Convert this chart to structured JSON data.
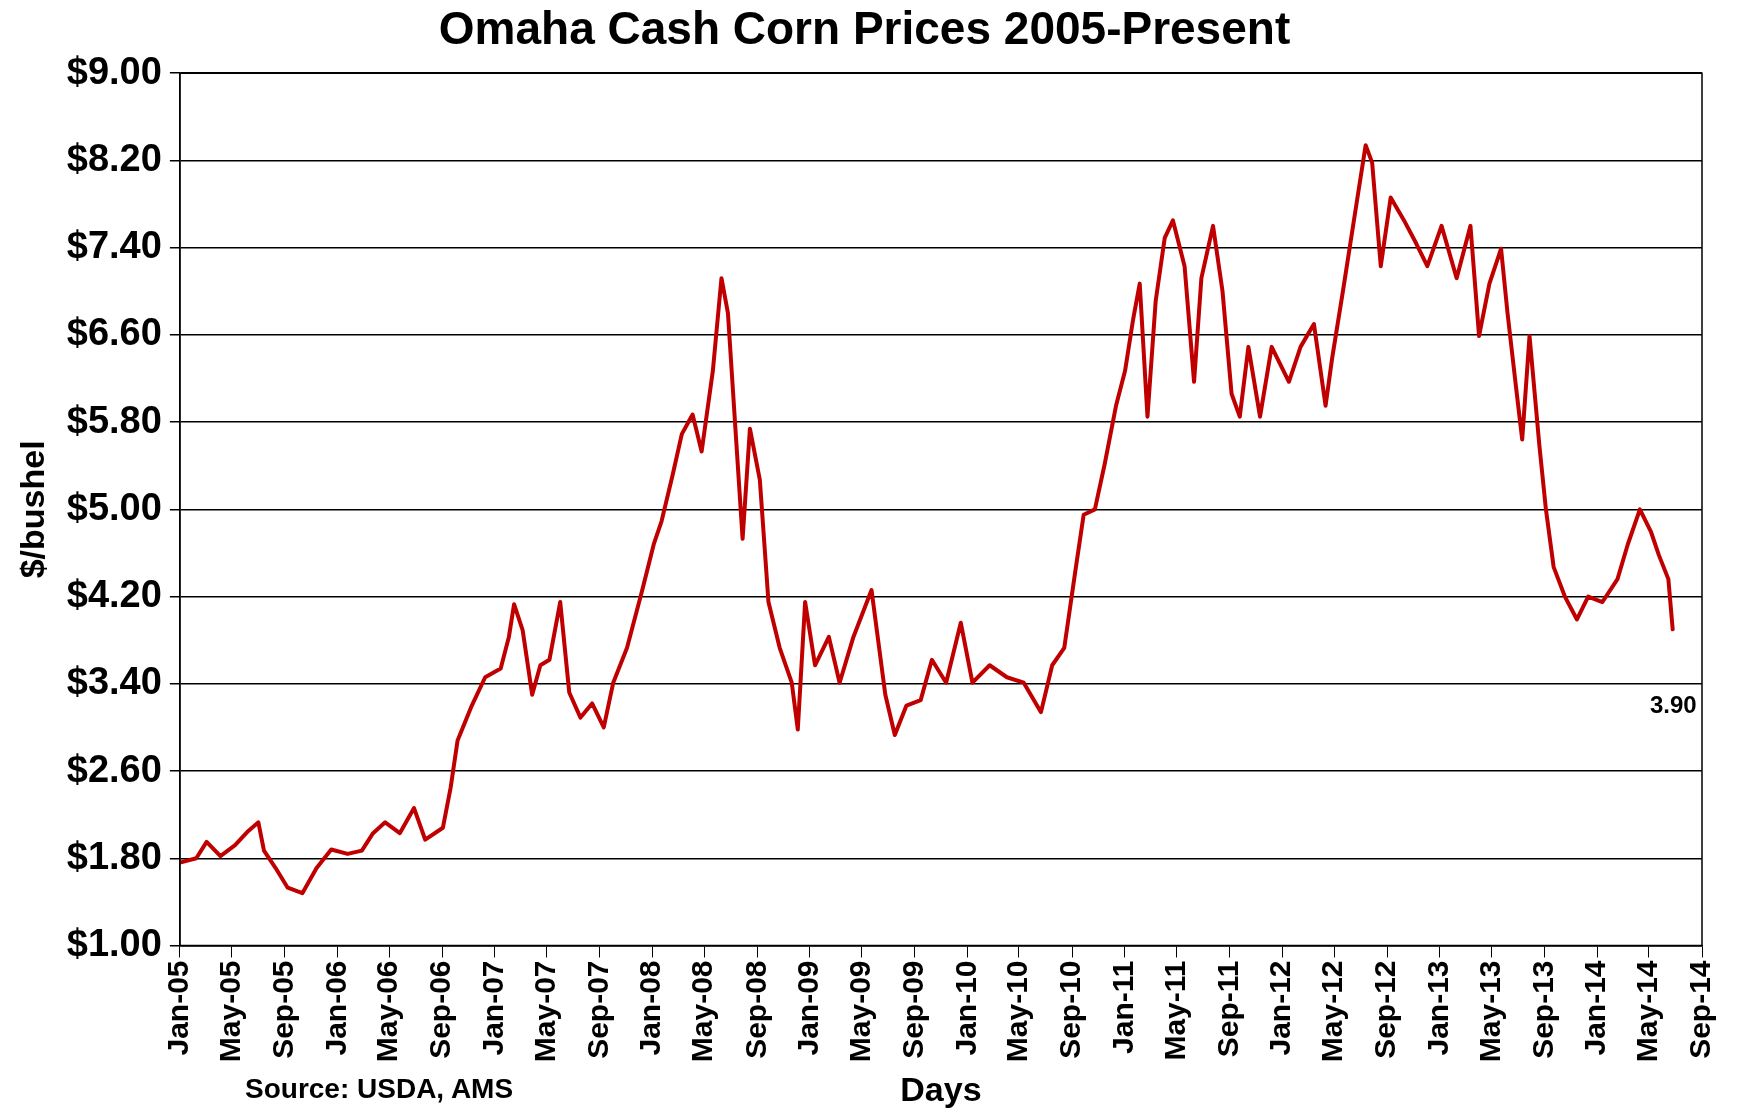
{
  "chart_data": {
    "type": "line",
    "title": "Omaha Cash Corn Prices 2005-Present",
    "xlabel": "Days",
    "ylabel": "$/bushel",
    "annotations": [
      "Source: USDA, AMS",
      {
        "text": "3.90",
        "x": "2014-06-25",
        "y": 3.9
      }
    ],
    "x": [
      "2005-01-01",
      "2005-02-08",
      "2005-03-04",
      "2005-04-05",
      "2005-05-09",
      "2005-06-06",
      "2005-07-02",
      "2005-07-15",
      "2005-08-11",
      "2005-09-08",
      "2005-10-12",
      "2005-11-14",
      "2005-12-18",
      "2006-01-25",
      "2006-02-27",
      "2006-03-25",
      "2006-04-22",
      "2006-05-26",
      "2006-06-28",
      "2006-07-24",
      "2006-09-03",
      "2006-09-21",
      "2006-10-07",
      "2006-11-09",
      "2006-12-10",
      "2007-01-15",
      "2007-02-03",
      "2007-02-15",
      "2007-03-07",
      "2007-03-29",
      "2007-04-17",
      "2007-05-08",
      "2007-06-02",
      "2007-06-23",
      "2007-07-19",
      "2007-08-15",
      "2007-09-11",
      "2007-10-03",
      "2007-11-04",
      "2007-12-08",
      "2008-01-05",
      "2008-01-23",
      "2008-02-18",
      "2008-03-10",
      "2008-04-04",
      "2008-04-25",
      "2008-05-21",
      "2008-06-10",
      "2008-06-25",
      "2008-07-14",
      "2008-07-29",
      "2008-08-15",
      "2008-09-07",
      "2008-09-27",
      "2008-10-23",
      "2008-11-20",
      "2008-12-04",
      "2008-12-21",
      "2009-01-13",
      "2009-02-14",
      "2009-03-11",
      "2009-04-12",
      "2009-05-24",
      "2009-06-25",
      "2009-07-17",
      "2009-08-13",
      "2009-09-15",
      "2009-10-11",
      "2009-11-13",
      "2009-12-17",
      "2010-01-13",
      "2010-02-22",
      "2010-04-03",
      "2010-05-12",
      "2010-06-21",
      "2010-07-17",
      "2010-08-14",
      "2010-09-10",
      "2010-09-28",
      "2010-10-24",
      "2010-11-16",
      "2010-12-12",
      "2011-01-02",
      "2011-01-21",
      "2011-02-05",
      "2011-02-23",
      "2011-03-14",
      "2011-04-04",
      "2011-04-23",
      "2011-05-20",
      "2011-06-11",
      "2011-06-28",
      "2011-07-25",
      "2011-08-16",
      "2011-09-06",
      "2011-09-25",
      "2011-10-15",
      "2011-11-11",
      "2011-12-08",
      "2012-01-17",
      "2012-02-13",
      "2012-03-15",
      "2012-04-11",
      "2012-04-26",
      "2012-05-22",
      "2012-06-24",
      "2012-07-13",
      "2012-07-28",
      "2012-08-17",
      "2012-09-09",
      "2012-10-10",
      "2012-11-07",
      "2012-12-03",
      "2013-01-05",
      "2013-02-09",
      "2013-03-13",
      "2013-04-02",
      "2013-04-26",
      "2013-05-23",
      "2013-06-07",
      "2013-06-27",
      "2013-07-11",
      "2013-07-28",
      "2013-08-20",
      "2013-09-04",
      "2013-09-22",
      "2013-10-18",
      "2013-11-15",
      "2013-12-11",
      "2014-01-13",
      "2014-02-17",
      "2014-03-13",
      "2014-04-10",
      "2014-05-06",
      "2014-05-24",
      "2014-06-15",
      "2014-06-25"
    ],
    "series": [
      {
        "color": "#c00000",
        "values": [
          1.76,
          1.8,
          1.95,
          1.82,
          1.92,
          2.04,
          2.13,
          1.87,
          1.71,
          1.53,
          1.48,
          1.71,
          1.88,
          1.84,
          1.87,
          2.03,
          2.13,
          2.03,
          2.26,
          1.97,
          2.08,
          2.45,
          2.88,
          3.2,
          3.46,
          3.54,
          3.83,
          4.13,
          3.89,
          3.3,
          3.57,
          3.62,
          4.15,
          3.32,
          3.09,
          3.22,
          3.0,
          3.41,
          3.73,
          4.24,
          4.68,
          4.89,
          5.32,
          5.69,
          5.87,
          5.53,
          6.27,
          7.12,
          6.8,
          5.64,
          4.73,
          5.74,
          5.27,
          4.15,
          3.73,
          3.41,
          2.98,
          4.15,
          3.57,
          3.83,
          3.41,
          3.83,
          4.26,
          3.3,
          2.93,
          3.2,
          3.25,
          3.62,
          3.41,
          3.96,
          3.41,
          3.57,
          3.46,
          3.41,
          3.14,
          3.57,
          3.73,
          4.47,
          4.95,
          5.0,
          5.42,
          5.95,
          6.27,
          6.75,
          7.07,
          5.85,
          6.91,
          7.49,
          7.65,
          7.23,
          6.17,
          7.12,
          7.6,
          7.0,
          6.06,
          5.85,
          6.49,
          5.85,
          6.49,
          6.17,
          6.49,
          6.7,
          5.95,
          6.38,
          7.02,
          7.86,
          8.34,
          8.18,
          7.23,
          7.86,
          7.65,
          7.44,
          7.23,
          7.6,
          7.12,
          7.6,
          6.59,
          7.07,
          7.39,
          6.8,
          6.11,
          5.64,
          6.59,
          5.58,
          5.0,
          4.47,
          4.2,
          3.99,
          4.2,
          4.15,
          4.36,
          4.68,
          5.0,
          4.79,
          4.58,
          4.36,
          3.9
        ]
      }
    ],
    "xlim": [
      "2005-01",
      "2014-09"
    ],
    "xticks": [
      {
        "value": "2005-01",
        "label": "Jan-05"
      },
      {
        "value": "2005-05",
        "label": "May-05"
      },
      {
        "value": "2005-09",
        "label": "Sep-05"
      },
      {
        "value": "2006-01",
        "label": "Jan-06"
      },
      {
        "value": "2006-05",
        "label": "May-06"
      },
      {
        "value": "2006-09",
        "label": "Sep-06"
      },
      {
        "value": "2007-01",
        "label": "Jan-07"
      },
      {
        "value": "2007-05",
        "label": "May-07"
      },
      {
        "value": "2007-09",
        "label": "Sep-07"
      },
      {
        "value": "2008-01",
        "label": "Jan-08"
      },
      {
        "value": "2008-05",
        "label": "May-08"
      },
      {
        "value": "2008-09",
        "label": "Sep-08"
      },
      {
        "value": "2009-01",
        "label": "Jan-09"
      },
      {
        "value": "2009-05",
        "label": "May-09"
      },
      {
        "value": "2009-09",
        "label": "Sep-09"
      },
      {
        "value": "2010-01",
        "label": "Jan-10"
      },
      {
        "value": "2010-05",
        "label": "May-10"
      },
      {
        "value": "2010-09",
        "label": "Sep-10"
      },
      {
        "value": "2011-01",
        "label": "Jan-11"
      },
      {
        "value": "2011-05",
        "label": "May-11"
      },
      {
        "value": "2011-09",
        "label": "Sep-11"
      },
      {
        "value": "2012-01",
        "label": "Jan-12"
      },
      {
        "value": "2012-05",
        "label": "May-12"
      },
      {
        "value": "2012-09",
        "label": "Sep-12"
      },
      {
        "value": "2013-01",
        "label": "Jan-13"
      },
      {
        "value": "2013-05",
        "label": "May-13"
      },
      {
        "value": "2013-09",
        "label": "Sep-13"
      },
      {
        "value": "2014-01",
        "label": "Jan-14"
      },
      {
        "value": "2014-05",
        "label": "May-14"
      },
      {
        "value": "2014-09",
        "label": "Sep-14"
      }
    ],
    "ylim": [
      1,
      9
    ],
    "yticks": [
      {
        "value": 1,
        "label": "$1.00"
      },
      {
        "value": 1.8,
        "label": "$1.80"
      },
      {
        "value": 2.6,
        "label": "$2.60"
      },
      {
        "value": 3.4,
        "label": "$3.40"
      },
      {
        "value": 4.2,
        "label": "$4.20"
      },
      {
        "value": 5,
        "label": "$5.00"
      },
      {
        "value": 5.8,
        "label": "$5.80"
      },
      {
        "value": 6.6,
        "label": "$6.60"
      },
      {
        "value": 7.4,
        "label": "$7.40"
      },
      {
        "value": 8.2,
        "label": "$8.20"
      },
      {
        "value": 9,
        "label": "$9.00"
      }
    ],
    "grid": "y",
    "marker": "none",
    "line_style": "solid"
  }
}
